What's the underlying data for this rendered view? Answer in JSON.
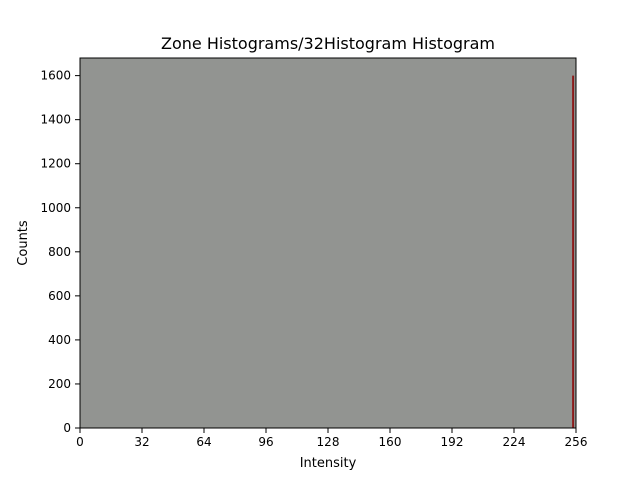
{
  "chart_data": {
    "type": "bar",
    "title": "Zone Histograms/32Histogram Histogram",
    "xlabel": "Intensity",
    "ylabel": "Counts",
    "xlim": [
      0,
      256
    ],
    "ylim": [
      0,
      1680
    ],
    "x_ticks": [
      0,
      32,
      64,
      96,
      128,
      160,
      192,
      224,
      256
    ],
    "y_ticks": [
      0,
      200,
      400,
      600,
      800,
      1000,
      1200,
      1400,
      1600
    ],
    "grid": false,
    "legend": "none",
    "plot_background_color": "#929491",
    "bar_color": "#8b1a1a",
    "bins": [
      {
        "x_start": 254,
        "x_end": 255,
        "count": 1600
      }
    ]
  }
}
